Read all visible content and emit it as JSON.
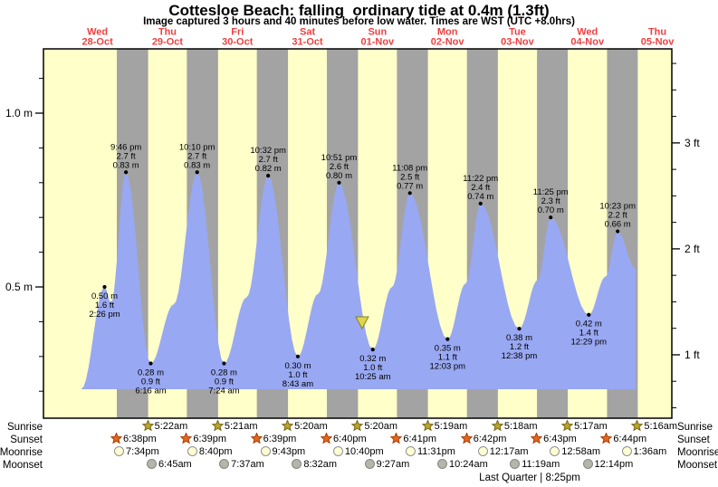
{
  "title": "Cottesloe Beach: falling  ordinary tide at 0.4m (1.3ft)",
  "subtitle": "Image captured 3 hours and 40 minutes before low water. Times are WST (UTC +8.0hrs)",
  "colors": {
    "day_band": "#ffffc9",
    "night_band": "#a3a3a3",
    "tide_fill": "#99a8f2",
    "date_label": "#ee3f3f",
    "now_marker_fill": "#ddd64d",
    "now_marker_border": "#85801f",
    "sunrise_star": "#b9a42c",
    "sunrise_star_border": "#78681a",
    "sunset_star": "#e2681f",
    "sunset_star_border": "#b13b00",
    "moonrise_fill": "#ffffd4",
    "moonrise_border": "#909090",
    "moonset_fill": "#b5b5ae",
    "moonset_border": "#87877f"
  },
  "chart_data": {
    "type": "area",
    "title": "Cottesloe Beach: falling ordinary tide at 0.4m (1.3ft)",
    "ylabel_left_unit": "m",
    "ylabel_right_unit": "ft",
    "ylim_m": [
      0.12,
      1.18
    ],
    "grid": false,
    "y_axis_left": {
      "ticks": [
        {
          "value": 1.0,
          "label": "1.0 m"
        },
        {
          "value": 0.5,
          "label": "0.5 m"
        }
      ]
    },
    "y_axis_right": {
      "ticks": [
        {
          "value": 3,
          "label": "3 ft"
        },
        {
          "value": 2,
          "label": "2 ft"
        },
        {
          "value": 1,
          "label": "1 ft"
        }
      ]
    },
    "days": [
      {
        "dow": "Wed",
        "date": "28-Oct"
      },
      {
        "dow": "Thu",
        "date": "29-Oct"
      },
      {
        "dow": "Fri",
        "date": "30-Oct"
      },
      {
        "dow": "Sat",
        "date": "31-Oct"
      },
      {
        "dow": "Sun",
        "date": "01-Nov"
      },
      {
        "dow": "Mon",
        "date": "02-Nov"
      },
      {
        "dow": "Tue",
        "date": "03-Nov"
      },
      {
        "dow": "Wed",
        "date": "04-Nov"
      },
      {
        "dow": "Thu",
        "date": "05-Nov"
      }
    ],
    "high_tides": [
      {
        "day": 0,
        "time": "9:46 pm",
        "height_m": 0.83,
        "m_label": "0.83 m",
        "ft_label": "2.7 ft"
      },
      {
        "day": 1,
        "time": "10:10 pm",
        "height_m": 0.83,
        "m_label": "0.83 m",
        "ft_label": "2.7 ft"
      },
      {
        "day": 2,
        "time": "10:32 pm",
        "height_m": 0.82,
        "m_label": "0.82 m",
        "ft_label": "2.7 ft"
      },
      {
        "day": 3,
        "time": "10:51 pm",
        "height_m": 0.8,
        "m_label": "0.80 m",
        "ft_label": "2.6 ft"
      },
      {
        "day": 4,
        "time": "11:08 pm",
        "height_m": 0.77,
        "m_label": "0.77 m",
        "ft_label": "2.5 ft"
      },
      {
        "day": 5,
        "time": "11:22 pm",
        "height_m": 0.74,
        "m_label": "0.74 m",
        "ft_label": "2.4 ft"
      },
      {
        "day": 6,
        "time": "11:25 pm",
        "height_m": 0.7,
        "m_label": "0.70 m",
        "ft_label": "2.3 ft"
      },
      {
        "day": 7,
        "time": "10:23 pm",
        "height_m": 0.66,
        "m_label": "0.66 m",
        "ft_label": "2.2 ft"
      }
    ],
    "low_tides": [
      {
        "day": 0,
        "time": "2:26 pm",
        "height_m": 0.5,
        "m_label": "0.50 m",
        "ft_label": "1.6 ft"
      },
      {
        "day": 1,
        "time": "6:16 am",
        "height_m": 0.28,
        "m_label": "0.28 m",
        "ft_label": "0.9 ft"
      },
      {
        "day": 2,
        "time": "7:24 am",
        "height_m": 0.28,
        "m_label": "0.28 m",
        "ft_label": "0.9 ft"
      },
      {
        "day": 3,
        "time": "8:43 am",
        "height_m": 0.3,
        "m_label": "0.30 m",
        "ft_label": "1.0 ft"
      },
      {
        "day": 4,
        "time": "10:25 am",
        "height_m": 0.32,
        "m_label": "0.32 m",
        "ft_label": "1.0 ft"
      },
      {
        "day": 5,
        "time": "12:03 pm",
        "height_m": 0.35,
        "m_label": "0.35 m",
        "ft_label": "1.1 ft"
      },
      {
        "day": 6,
        "time": "12:38 pm",
        "height_m": 0.38,
        "m_label": "0.38 m",
        "ft_label": "1.2 ft"
      },
      {
        "day": 7,
        "time": "12:29 pm",
        "height_m": 0.42,
        "m_label": "0.42 m",
        "ft_label": "1.4 ft"
      }
    ],
    "curve_points": [
      [
        0.272,
        0.207
      ],
      [
        0.601,
        0.5
      ],
      [
        0.695,
        0.455
      ],
      [
        0.907,
        0.83
      ],
      [
        1.261,
        0.28
      ],
      [
        1.59,
        0.45
      ],
      [
        1.924,
        0.83
      ],
      [
        2.308,
        0.28
      ],
      [
        2.63,
        0.47
      ],
      [
        2.939,
        0.82
      ],
      [
        3.363,
        0.3
      ],
      [
        3.65,
        0.48
      ],
      [
        3.952,
        0.8
      ],
      [
        4.434,
        0.32
      ],
      [
        4.71,
        0.5
      ],
      [
        4.964,
        0.77
      ],
      [
        5.502,
        0.35
      ],
      [
        5.76,
        0.51
      ],
      [
        5.974,
        0.74
      ],
      [
        6.526,
        0.38
      ],
      [
        6.79,
        0.52
      ],
      [
        6.976,
        0.7
      ],
      [
        7.52,
        0.42
      ],
      [
        7.76,
        0.53
      ],
      [
        7.933,
        0.66
      ],
      [
        8.19,
        0.552
      ]
    ],
    "now_marker": {
      "day_decimal": 4.281,
      "height_m": 0.4
    },
    "sun_moon": {
      "sunrise": {
        "label": "Sunrise",
        "events": [
          {
            "day": 1,
            "time": "5:22am"
          },
          {
            "day": 2,
            "time": "5:21am"
          },
          {
            "day": 3,
            "time": "5:20am"
          },
          {
            "day": 4,
            "time": "5:20am"
          },
          {
            "day": 5,
            "time": "5:19am"
          },
          {
            "day": 6,
            "time": "5:18am"
          },
          {
            "day": 7,
            "time": "5:17am"
          },
          {
            "day": 8,
            "time": "5:16am"
          }
        ]
      },
      "sunset": {
        "label": "Sunset",
        "events": [
          {
            "day": 0,
            "time": "6:38pm"
          },
          {
            "day": 1,
            "time": "6:39pm"
          },
          {
            "day": 2,
            "time": "6:39pm"
          },
          {
            "day": 3,
            "time": "6:40pm"
          },
          {
            "day": 4,
            "time": "6:41pm"
          },
          {
            "day": 5,
            "time": "6:42pm"
          },
          {
            "day": 6,
            "time": "6:43pm"
          },
          {
            "day": 7,
            "time": "6:44pm"
          }
        ]
      },
      "moonrise": {
        "label": "Moonrise",
        "events": [
          {
            "day": 0,
            "time": "7:34pm"
          },
          {
            "day": 1,
            "time": "8:40pm"
          },
          {
            "day": 2,
            "time": "9:43pm"
          },
          {
            "day": 3,
            "time": "10:40pm"
          },
          {
            "day": 4,
            "time": "11:31pm"
          },
          {
            "day": 6,
            "time": "12:17am"
          },
          {
            "day": 7,
            "time": "12:58am"
          },
          {
            "day": 8,
            "time": "1:36am"
          }
        ]
      },
      "moonset": {
        "label": "Moonset",
        "events": [
          {
            "day": 1,
            "time": "6:45am"
          },
          {
            "day": 2,
            "time": "7:37am"
          },
          {
            "day": 3,
            "time": "8:32am"
          },
          {
            "day": 4,
            "time": "9:27am"
          },
          {
            "day": 5,
            "time": "10:24am"
          },
          {
            "day": 6,
            "time": "11:19am"
          },
          {
            "day": 7,
            "time": "12:14pm"
          }
        ]
      }
    },
    "moon_phase": "Last Quarter | 8:25pm"
  }
}
